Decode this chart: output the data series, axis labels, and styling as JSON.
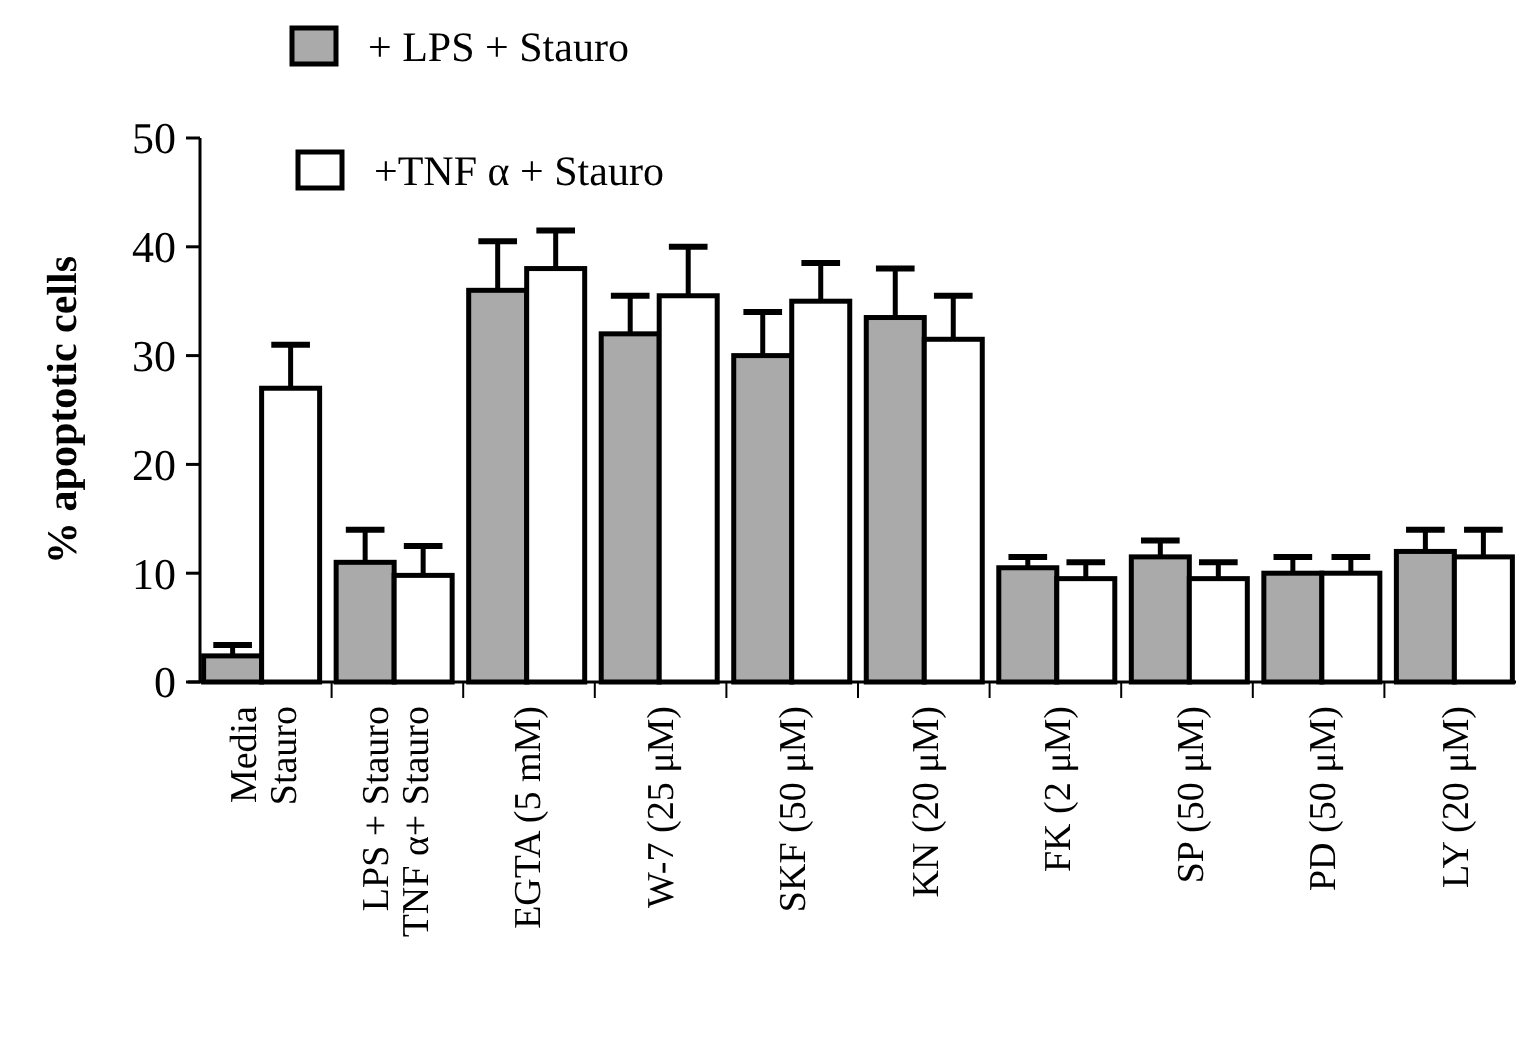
{
  "chart_data": {
    "type": "bar",
    "ylabel": "% apoptotic cells",
    "categories": [
      "Media\nStauro",
      "LPS + Stauro\nTNF α+ Stauro",
      "EGTA (5 mM)",
      "W-7 (25 μM)",
      "SKF (50 μM)",
      "KN (20 μM)",
      "FK (2 μM)",
      "SP (50 μM)",
      "PD (50 μM)",
      "LY (20 μM)"
    ],
    "series": [
      {
        "name": "+ LPS + Stauro",
        "color": "#aaaaaa",
        "values": [
          2.4,
          11,
          36,
          32,
          30,
          33.5,
          10.5,
          11.5,
          10,
          12
        ],
        "errors": [
          [
            2.4,
            3.4
          ],
          [
            11,
            14
          ],
          [
            36,
            40.5
          ],
          [
            32,
            35.5
          ],
          [
            30,
            34
          ],
          [
            33.5,
            38
          ],
          [
            10.5,
            11.5
          ],
          [
            11.5,
            13
          ],
          [
            10,
            11.5
          ],
          [
            12,
            14
          ]
        ]
      },
      {
        "name": "+TNF α + Stauro",
        "color": "#ffffff",
        "values": [
          27,
          9.8,
          38,
          35.5,
          35,
          31.5,
          9.5,
          9.5,
          10,
          11.5
        ],
        "errors": [
          [
            27,
            31
          ],
          [
            9.8,
            12.5
          ],
          [
            38,
            41.5
          ],
          [
            35.5,
            40
          ],
          [
            35,
            38.5
          ],
          [
            31.5,
            35.5
          ],
          [
            9.5,
            11
          ],
          [
            9.5,
            11
          ],
          [
            10,
            11.5
          ],
          [
            11.5,
            14
          ]
        ]
      }
    ],
    "ylim": [
      0,
      50
    ],
    "yticks": [
      0,
      10,
      20,
      30,
      40,
      50
    ],
    "grid": false,
    "legend": "top"
  }
}
